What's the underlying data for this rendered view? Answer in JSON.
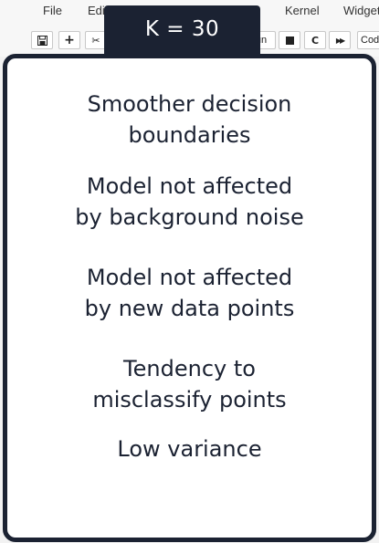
{
  "menu": {
    "file": "File",
    "edit": "Edit",
    "kernel": "Kernel",
    "widgets": "Widget"
  },
  "toolbar": {
    "save_icon": "floppy-disk-icon",
    "add_icon": "plus-icon",
    "add_glyph": "+",
    "cut_icon": "scissors-icon",
    "cut_glyph": "✂",
    "run_label": "un",
    "stop_icon": "stop-icon",
    "restart_icon": "restart-icon",
    "restart_glyph": "C",
    "fast_forward_icon": "fast-forward-icon",
    "fast_forward_glyph": "▶▶",
    "cell_type_value": "Cod"
  },
  "slide": {
    "title": "K = 30",
    "points": [
      {
        "line1": "Smoother decision",
        "line2": "boundaries"
      },
      {
        "line1": "Model not affected",
        "line2": "by background noise"
      },
      {
        "line1": "Model not affected",
        "line2": "by new data points"
      },
      {
        "line1": "Tendency to",
        "line2": "misclassify points"
      },
      {
        "line1": "Low variance",
        "line2": ""
      }
    ]
  },
  "colors": {
    "slide_dark": "#1b2232",
    "card_background": "#ffffff",
    "title_text": "#ffffff",
    "jupyter_background": "#f7f7f7"
  }
}
